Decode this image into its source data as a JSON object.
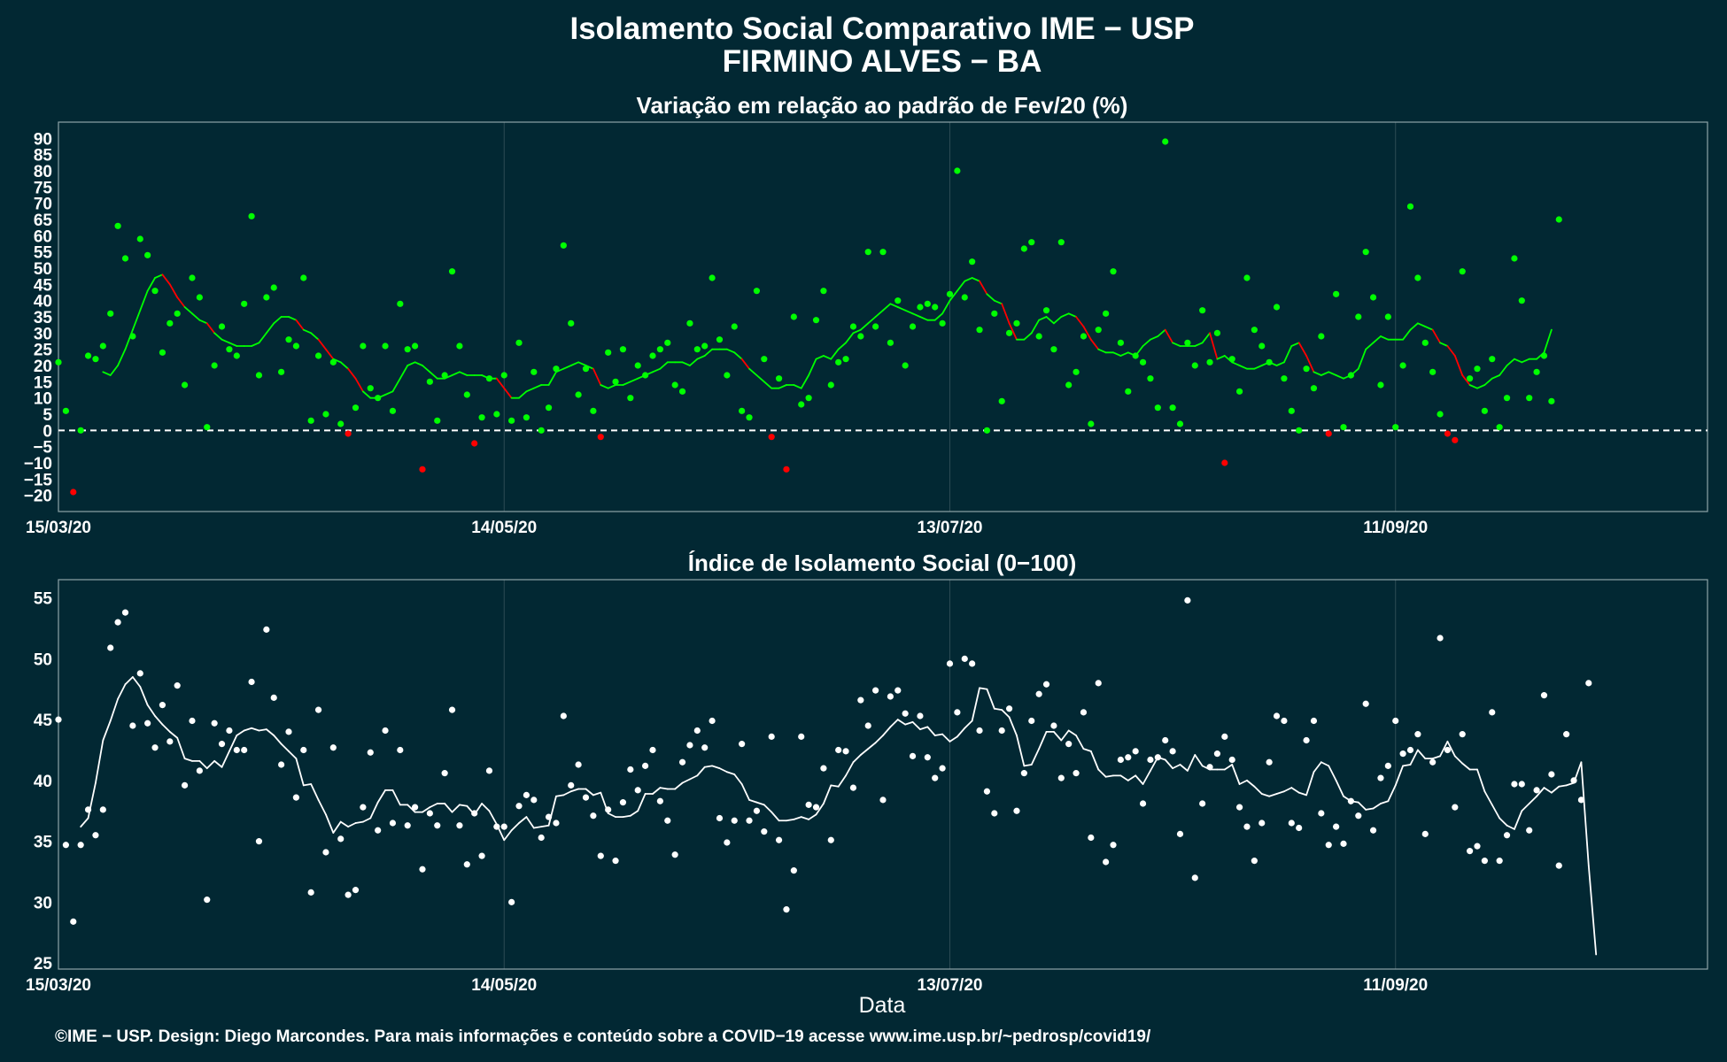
{
  "figure": {
    "title_line1": "Isolamento Social Comparativo IME − USP",
    "title_line2": "FIRMINO ALVES − BA",
    "xlabel": "Data",
    "footer": "©IME − USP. Design: Diego Marcondes. Para mais informações e conteúdo sobre a COVID−19 acesse www.ime.usp.br/~pedrosp/covid19/"
  },
  "colors": {
    "background": "#022833",
    "above_zero": "#00ff00",
    "below_zero": "#ff0000",
    "index_series": "#ffffff",
    "zero_line": "#ffffff"
  },
  "chart_data": [
    {
      "type": "scatter",
      "title": "Variação em relação ao padrão de Fev/20 (%)",
      "x_type": "date",
      "start_date": "2020-03-15",
      "end_date": "2020-10-23",
      "x_ticks": [
        "15/03/20",
        "14/05/20",
        "13/07/20",
        "11/09/20"
      ],
      "ylim": [
        -25,
        95
      ],
      "y_ticks": [
        -20,
        -15,
        -10,
        -5,
        0,
        5,
        10,
        15,
        20,
        25,
        30,
        35,
        40,
        45,
        50,
        55,
        60,
        65,
        70,
        75,
        80,
        85,
        90
      ],
      "reference_line": {
        "y": 0,
        "style": "dashed"
      },
      "grid": true,
      "series": [
        {
          "kind": "points",
          "values": [
            21,
            6,
            -19,
            0,
            23,
            22,
            26,
            36,
            63,
            53,
            29,
            59,
            54,
            43,
            24,
            33,
            36,
            14,
            47,
            41,
            1,
            20,
            32,
            25,
            23,
            39,
            66,
            17,
            41,
            44,
            18,
            28,
            26,
            47,
            3,
            23,
            5,
            21,
            2,
            -1,
            7,
            26,
            13,
            10,
            26,
            6,
            39,
            25,
            26,
            -12,
            15,
            3,
            17,
            49,
            26,
            11,
            -4,
            4,
            16,
            5,
            17,
            3,
            27,
            4,
            18,
            0,
            7,
            19,
            57,
            33,
            11,
            19,
            6,
            -2,
            24,
            15,
            25,
            10,
            20,
            17,
            23,
            25,
            27,
            14,
            12,
            33,
            25,
            26,
            47,
            28,
            17,
            32,
            6,
            4,
            43,
            22,
            -2,
            16,
            -12,
            35,
            8,
            10,
            34,
            43,
            14,
            21,
            22,
            32,
            29,
            55,
            32,
            55,
            27,
            40,
            20,
            32,
            38,
            39,
            38,
            33,
            42,
            80,
            41,
            52,
            31,
            0,
            36,
            9,
            30,
            33,
            56,
            58,
            29,
            37,
            25,
            58,
            14,
            18,
            29,
            2,
            31,
            36,
            49,
            27,
            12,
            23,
            21,
            16,
            7,
            89,
            7,
            2,
            27,
            20,
            37,
            21,
            30,
            -10,
            22,
            12,
            47,
            31,
            26,
            21,
            38,
            16,
            6,
            0,
            19,
            13,
            29,
            -1,
            42,
            1,
            17,
            35,
            55,
            41,
            14,
            35,
            1,
            20,
            69,
            47,
            27,
            18,
            5,
            -1,
            -3,
            49,
            16,
            19,
            6,
            22,
            1,
            10,
            53,
            40,
            10,
            18,
            23,
            9,
            65
          ]
        },
        {
          "kind": "moving_average",
          "values": [
            null,
            null,
            null,
            null,
            null,
            null,
            18,
            17,
            20,
            25,
            31,
            37,
            43,
            47,
            48,
            45,
            41,
            38,
            36,
            34,
            33,
            30,
            28,
            27,
            26,
            26,
            26,
            27,
            30,
            33,
            35,
            35,
            34,
            31,
            30,
            28,
            25,
            22,
            21,
            19,
            16,
            12,
            10,
            10,
            11,
            12,
            16,
            20,
            21,
            20,
            18,
            16,
            16,
            17,
            18,
            17,
            17,
            17,
            16,
            16,
            13,
            10,
            10,
            12,
            13,
            14,
            14,
            18,
            19,
            20,
            21,
            20,
            19,
            14,
            13,
            14,
            14,
            15,
            16,
            17,
            18,
            19,
            21,
            21,
            21,
            20,
            22,
            23,
            25,
            25,
            25,
            24,
            22,
            19,
            17,
            15,
            13,
            13,
            14,
            14,
            13,
            17,
            22,
            23,
            22,
            25,
            27,
            30,
            31,
            33,
            35,
            37,
            39,
            38,
            37,
            36,
            35,
            34,
            34,
            36,
            40,
            43,
            46,
            47,
            46,
            42,
            40,
            39,
            33,
            28,
            28,
            30,
            34,
            35,
            33,
            35,
            36,
            35,
            32,
            28,
            25,
            24,
            24,
            23,
            24,
            23,
            26,
            28,
            29,
            31,
            27,
            26,
            26,
            26,
            27,
            30,
            22,
            23,
            21,
            20,
            19,
            19,
            20,
            21,
            20,
            21,
            26,
            27,
            23,
            18,
            17,
            18,
            17,
            16,
            17,
            19,
            25,
            27,
            29,
            28,
            28,
            28,
            31,
            33,
            32,
            31,
            27,
            26,
            23,
            17,
            14,
            13,
            14,
            16,
            17,
            20,
            22,
            21,
            22,
            22,
            24,
            31,
            null
          ]
        }
      ]
    },
    {
      "type": "scatter",
      "title": "Índice de Isolamento Social (0−100)",
      "x_type": "date",
      "start_date": "2020-03-15",
      "end_date": "2020-10-23",
      "x_ticks": [
        "15/03/20",
        "14/05/20",
        "13/07/20",
        "11/09/20"
      ],
      "ylim": [
        24.5,
        56.5
      ],
      "y_ticks": [
        25,
        30,
        35,
        40,
        45,
        50,
        55
      ],
      "grid": true,
      "series": [
        {
          "kind": "points",
          "values": [
            45,
            34.7,
            28.4,
            34.7,
            37.6,
            35.5,
            37.6,
            50.9,
            53.0,
            53.8,
            44.5,
            48.8,
            44.7,
            42.7,
            46.2,
            43.2,
            47.8,
            39.6,
            44.9,
            40.8,
            30.2,
            44.7,
            43.0,
            44.1,
            42.5,
            42.5,
            48.1,
            35.0,
            52.4,
            46.8,
            41.3,
            44.0,
            38.6,
            42.5,
            30.8,
            45.8,
            34.1,
            42.7,
            35.2,
            30.6,
            31.0,
            37.8,
            42.3,
            35.9,
            44.1,
            36.5,
            42.5,
            36.3,
            37.8,
            32.7,
            37.3,
            36.3,
            40.6,
            45.8,
            36.3,
            33.1,
            37.3,
            33.8,
            40.8,
            36.2,
            36.2,
            30.0,
            37.9,
            38.8,
            38.4,
            35.3,
            37.0,
            36.5,
            45.3,
            39.6,
            41.3,
            38.6,
            37.1,
            33.8,
            37.6,
            33.4,
            38.2,
            40.9,
            39.2,
            41.2,
            42.5,
            38.3,
            36.7,
            33.9,
            41.5,
            42.9,
            44.1,
            42.7,
            44.9,
            36.9,
            34.9,
            36.7,
            43.0,
            36.7,
            37.5,
            35.8,
            43.6,
            35.1,
            29.4,
            32.6,
            43.6,
            38.0,
            37.8,
            41.0,
            35.1,
            42.5,
            42.4,
            39.4,
            46.6,
            44.5,
            47.4,
            38.4,
            46.9,
            47.4,
            45.5,
            42.0,
            45.3,
            41.9,
            40.2,
            41.0,
            49.6,
            45.6,
            50.0,
            49.6,
            44.1,
            39.1,
            37.3,
            44.1,
            45.9,
            37.5,
            40.6,
            44.9,
            47.1,
            47.9,
            44.5,
            40.2,
            43.0,
            40.6,
            45.6,
            35.3,
            48.0,
            33.3,
            34.7,
            41.7,
            41.9,
            42.4,
            38.1,
            41.7,
            41.9,
            43.3,
            42.4,
            35.6,
            54.8,
            32.0,
            38.1,
            41.1,
            42.2,
            43.6,
            41.7,
            37.8,
            36.2,
            33.4,
            36.5,
            41.5,
            45.3,
            44.9,
            36.5,
            36.1,
            43.3,
            44.9,
            37.3,
            34.7,
            36.2,
            34.8,
            38.3,
            37.1,
            46.3,
            35.9,
            40.2,
            41.2,
            44.9,
            42.2,
            42.5,
            43.8,
            35.6,
            41.5,
            51.7,
            42.5,
            37.8,
            43.8,
            34.2,
            34.6,
            33.4,
            45.6,
            33.4,
            35.5,
            39.7,
            39.7,
            35.9,
            39.2,
            47.0,
            40.5,
            33.0,
            43.8,
            40.0,
            38.4,
            48.0
          ]
        },
        {
          "kind": "moving_average",
          "values": [
            null,
            null,
            null,
            36.2,
            36.9,
            39.8,
            43.3,
            44.9,
            46.7,
            47.9,
            48.5,
            47.7,
            46.2,
            45.3,
            44.6,
            44.0,
            43.5,
            41.8,
            41.6,
            41.6,
            41.0,
            41.6,
            41.1,
            42.4,
            43.7,
            44.1,
            44.3,
            44.1,
            44.2,
            43.7,
            43.0,
            42.4,
            41.8,
            39.6,
            39.7,
            38.4,
            37.2,
            35.7,
            36.6,
            36.2,
            36.5,
            36.6,
            36.9,
            38.2,
            39.2,
            39.2,
            38.0,
            38.0,
            37.4,
            37.4,
            37.8,
            38.1,
            38.1,
            37.4,
            38.0,
            37.9,
            37.2,
            38.1,
            37.5,
            36.4,
            35.1,
            35.9,
            36.5,
            37.0,
            36.1,
            36.2,
            36.3,
            38.7,
            38.8,
            39.1,
            39.3,
            39.3,
            38.8,
            39.0,
            37.3,
            37.0,
            37.0,
            37.1,
            37.5,
            38.9,
            38.9,
            39.4,
            39.3,
            39.3,
            39.8,
            40.1,
            40.4,
            41.1,
            41.2,
            41.0,
            40.7,
            40.5,
            39.7,
            38.4,
            38.2,
            38.0,
            37.4,
            36.7,
            36.7,
            36.8,
            37.0,
            36.8,
            37.2,
            38.1,
            39.6,
            39.5,
            40.4,
            41.5,
            42.1,
            42.6,
            43.1,
            43.7,
            44.4,
            45.0,
            44.6,
            44.8,
            44.2,
            44.4,
            43.7,
            43.8,
            43.2,
            43.6,
            44.3,
            44.9,
            47.6,
            47.5,
            45.9,
            45.8,
            45.2,
            43.7,
            41.2,
            41.3,
            42.6,
            44.0,
            44.0,
            43.3,
            44.1,
            43.7,
            42.6,
            42.4,
            40.9,
            40.3,
            40.4,
            40.4,
            40.0,
            40.4,
            39.7,
            40.8,
            41.9,
            41.7,
            41.0,
            41.3,
            40.8,
            42.1,
            41.2,
            40.9,
            40.9,
            40.9,
            41.3,
            39.7,
            40.0,
            39.5,
            38.9,
            38.7,
            38.9,
            39.1,
            39.4,
            39.0,
            38.8,
            40.7,
            41.5,
            41.2,
            40.0,
            38.7,
            38.3,
            38.2,
            37.6,
            37.7,
            38.1,
            38.3,
            39.6,
            41.2,
            41.3,
            42.5,
            41.8,
            41.8,
            42.0,
            43.2,
            42.0,
            41.4,
            40.9,
            40.9,
            39.1,
            38.0,
            36.9,
            36.3,
            36.0,
            37.5,
            38.1,
            38.7,
            39.4,
            39.0,
            39.5,
            39.6,
            39.8,
            41.5,
            33.0,
            25.7
          ]
        }
      ]
    }
  ]
}
